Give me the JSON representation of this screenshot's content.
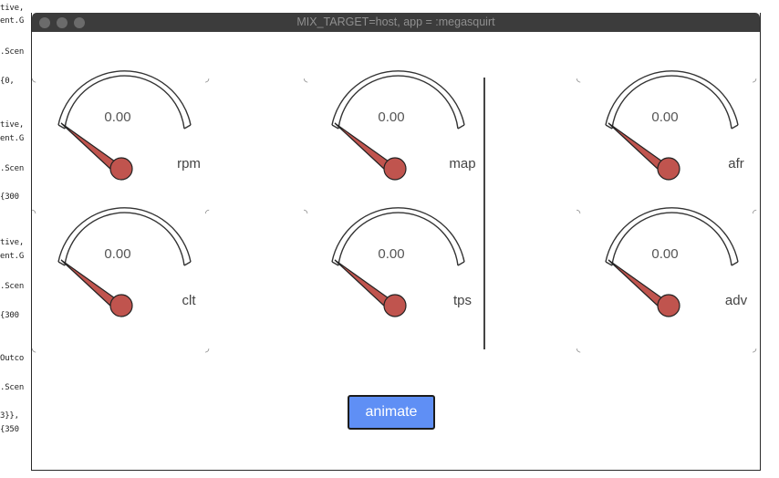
{
  "terminal": {
    "lines": [
      "tive,",
      "ent.G",
      ".Scen",
      "{0,",
      "tive,",
      "ent.G",
      ".Scen",
      "{300",
      "tive,",
      "ent.G",
      ".Scen",
      "{300",
      "Outco",
      ".Scen",
      "3}},",
      "{350"
    ]
  },
  "window": {
    "title": "MIX_TARGET=host, app = :megasquirt"
  },
  "gauges": [
    {
      "value": "0.00",
      "label": "rpm"
    },
    {
      "value": "0.00",
      "label": "map"
    },
    {
      "value": "0.00",
      "label": "afr"
    },
    {
      "value": "0.00",
      "label": "clt"
    },
    {
      "value": "0.00",
      "label": "tps"
    },
    {
      "value": "0.00",
      "label": "adv"
    }
  ],
  "colors": {
    "needle": "#c0544e",
    "button": "#5f8ff5",
    "titlebar": "#3c3c3c"
  },
  "actions": {
    "animate_label": "animate"
  }
}
